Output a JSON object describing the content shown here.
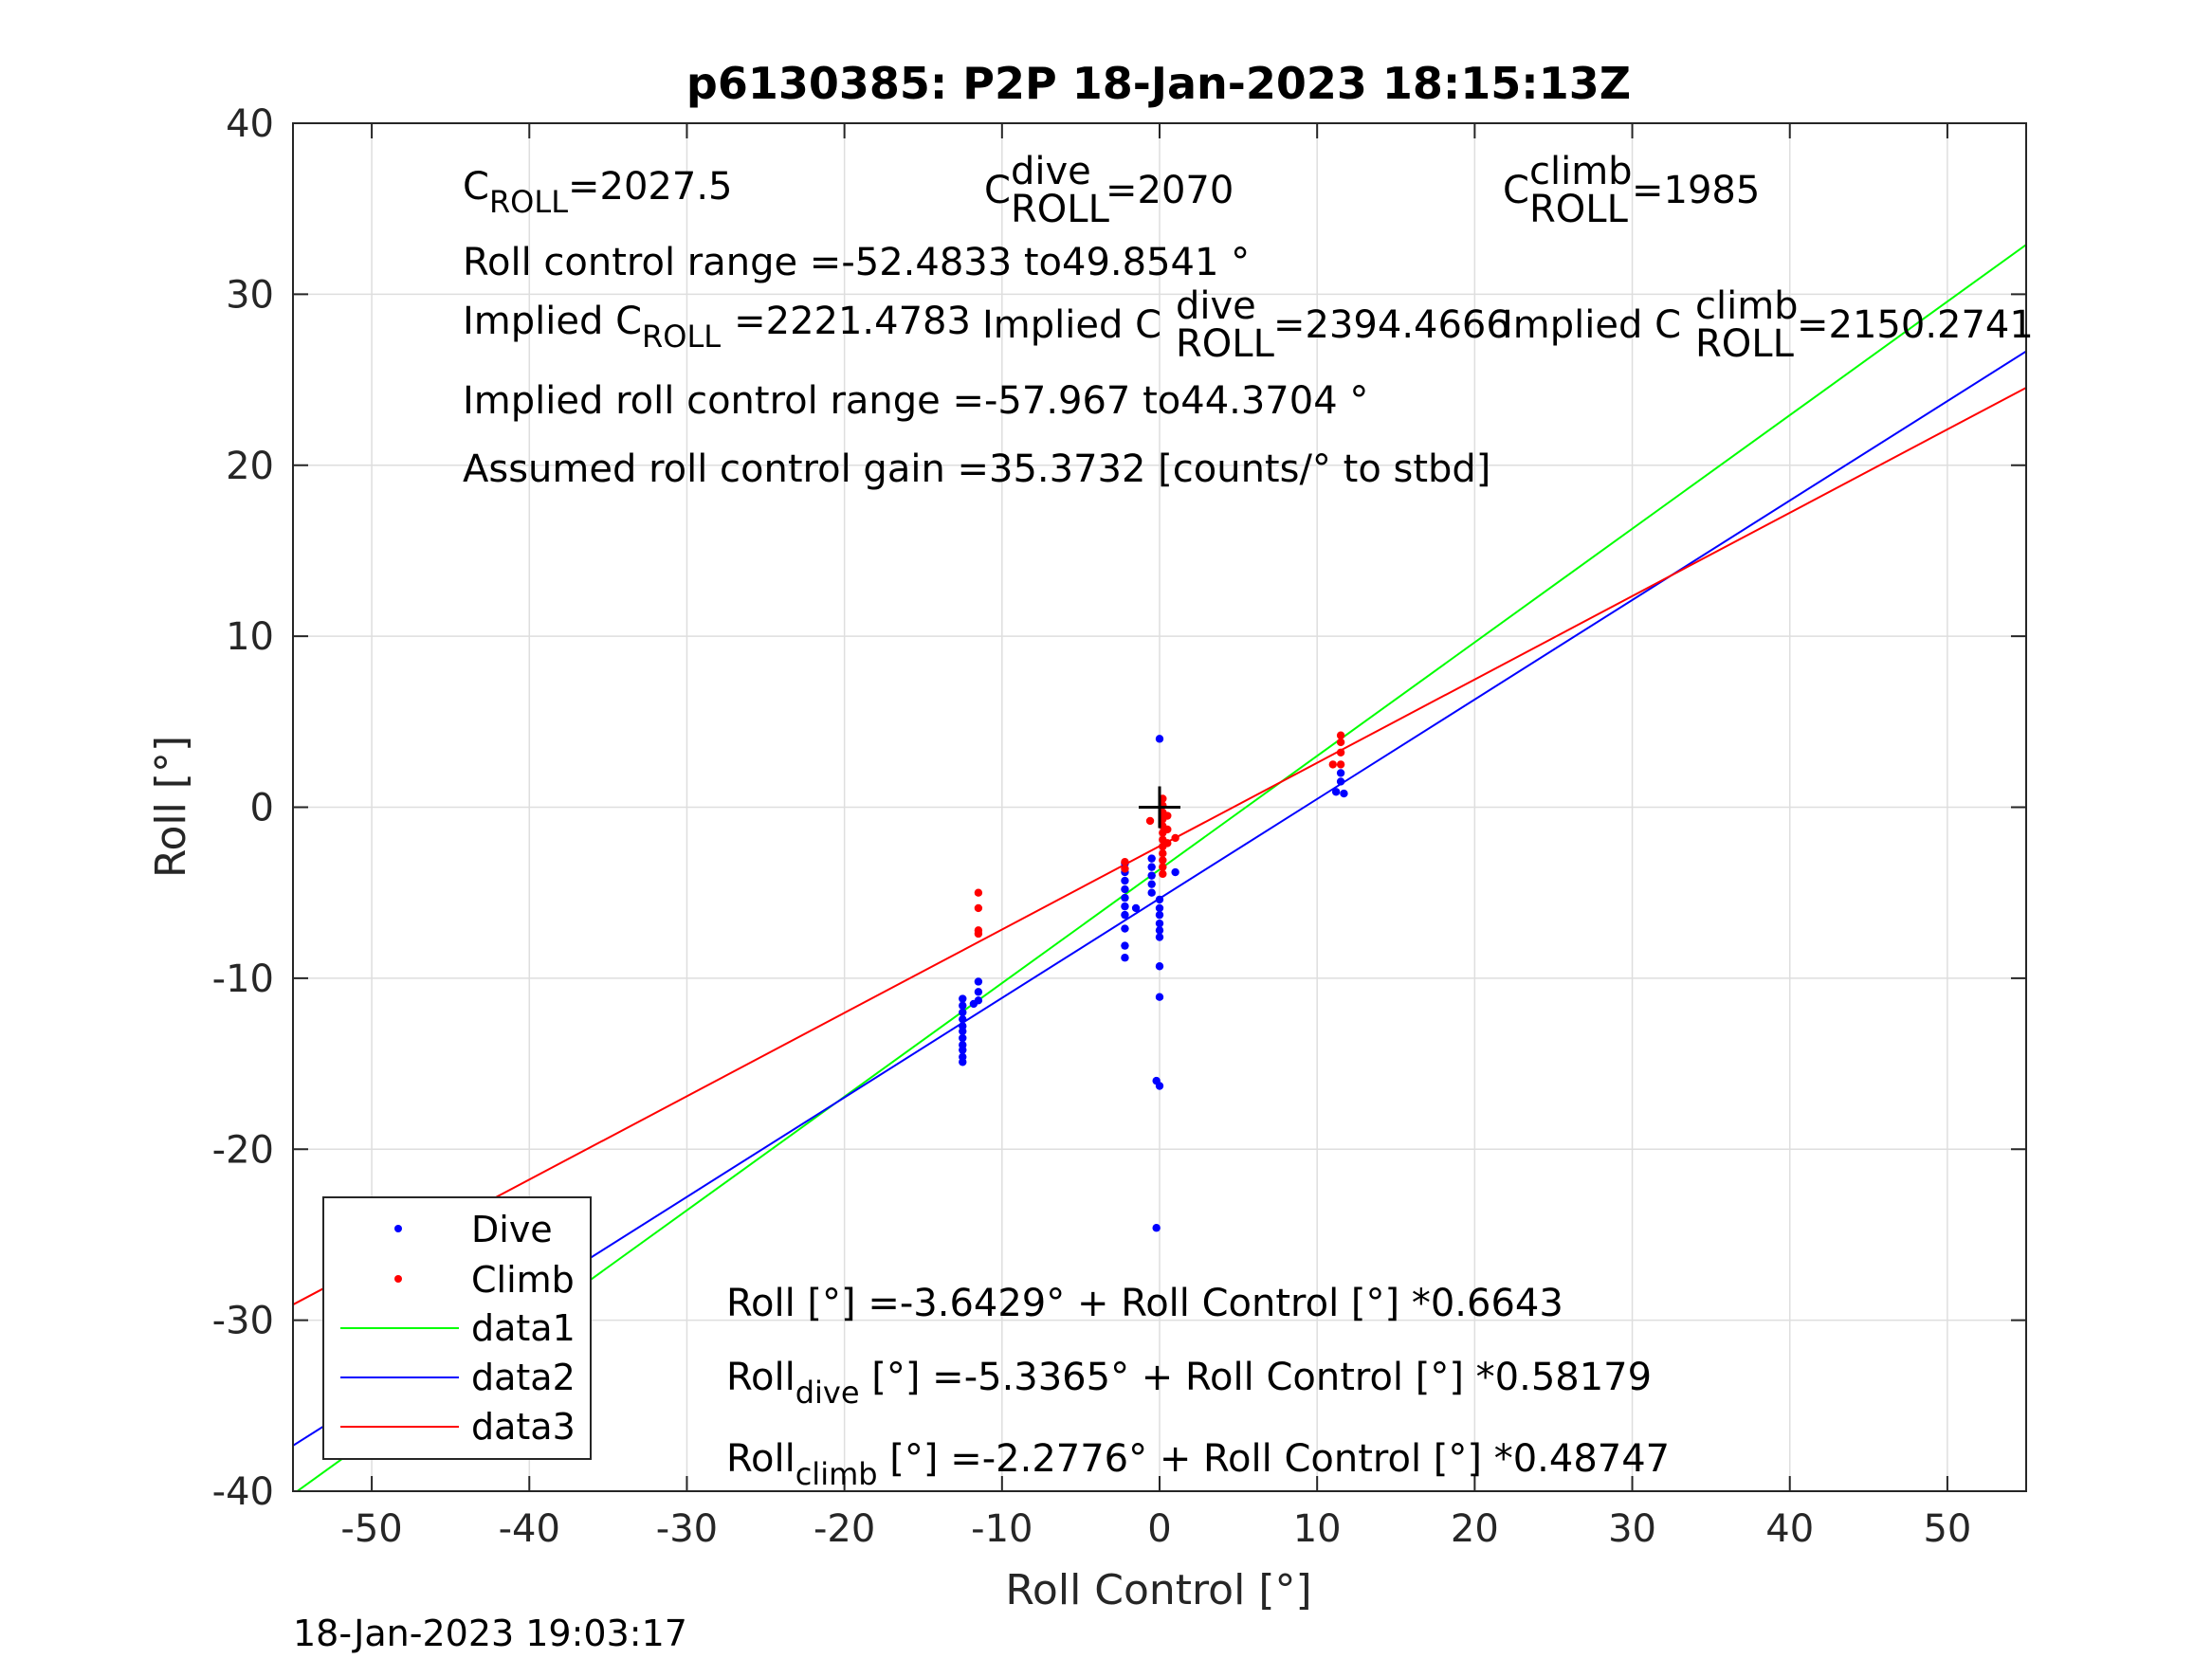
{
  "chart_data": {
    "type": "scatter",
    "title": "p6130385: P2P 18-Jan-2023 18:15:13Z",
    "xlabel": "Roll Control [°]",
    "ylabel": "Roll [°]",
    "xlim": [
      -55,
      55
    ],
    "ylim": [
      -40,
      40
    ],
    "xticks": [
      -50,
      -40,
      -30,
      -20,
      -10,
      0,
      10,
      20,
      30,
      40,
      50
    ],
    "yticks": [
      -40,
      -30,
      -20,
      -10,
      0,
      10,
      20,
      30,
      40
    ],
    "grid": true,
    "legend_position": "bottom-left",
    "timestamp": "18-Jan-2023 19:03:17",
    "center_marker": [
      0,
      0
    ],
    "series": [
      {
        "name": "Dive",
        "kind": "points",
        "color": "#0000ff",
        "points": [
          [
            -12.5,
            -11.2
          ],
          [
            -12.5,
            -11.6
          ],
          [
            -12.5,
            -12.0
          ],
          [
            -12.5,
            -12.4
          ],
          [
            -12.5,
            -12.8
          ],
          [
            -12.5,
            -13.1
          ],
          [
            -12.5,
            -13.5
          ],
          [
            -12.5,
            -13.9
          ],
          [
            -12.5,
            -14.2
          ],
          [
            -12.5,
            -14.6
          ],
          [
            -12.5,
            -14.9
          ],
          [
            -11.5,
            -10.2
          ],
          [
            -11.5,
            -10.8
          ],
          [
            -11.5,
            -11.3
          ],
          [
            -11.8,
            -11.5
          ],
          [
            -2.2,
            -3.3
          ],
          [
            -2.2,
            -3.8
          ],
          [
            -2.2,
            -4.3
          ],
          [
            -2.2,
            -4.8
          ],
          [
            -2.2,
            -5.3
          ],
          [
            -2.2,
            -5.8
          ],
          [
            -2.2,
            -6.3
          ],
          [
            -2.2,
            -7.1
          ],
          [
            -2.2,
            -8.1
          ],
          [
            -2.2,
            -8.8
          ],
          [
            -1.5,
            -5.9
          ],
          [
            -0.5,
            -3.0
          ],
          [
            -0.5,
            -3.5
          ],
          [
            -0.5,
            -4.0
          ],
          [
            -0.5,
            -4.5
          ],
          [
            -0.5,
            -5.0
          ],
          [
            0.0,
            4.0
          ],
          [
            0.0,
            -5.4
          ],
          [
            0.0,
            -5.9
          ],
          [
            0.0,
            -6.3
          ],
          [
            0.0,
            -6.8
          ],
          [
            0.0,
            -7.2
          ],
          [
            0.0,
            -7.6
          ],
          [
            0.0,
            -9.3
          ],
          [
            0.0,
            -11.1
          ],
          [
            -0.2,
            -16.0
          ],
          [
            0.0,
            -16.3
          ],
          [
            -0.2,
            -24.6
          ],
          [
            1.0,
            -3.8
          ],
          [
            11.2,
            0.9
          ],
          [
            11.5,
            1.5
          ],
          [
            11.5,
            2.0
          ],
          [
            11.7,
            0.8
          ]
        ]
      },
      {
        "name": "Climb",
        "kind": "points",
        "color": "#ff0000",
        "points": [
          [
            -11.5,
            -5.0
          ],
          [
            -11.5,
            -5.9
          ],
          [
            -11.5,
            -7.2
          ],
          [
            -11.5,
            -7.4
          ],
          [
            -2.2,
            -3.2
          ],
          [
            -2.2,
            -3.6
          ],
          [
            -0.6,
            -0.8
          ],
          [
            0.2,
            0.5
          ],
          [
            0.2,
            0.1
          ],
          [
            0.2,
            -0.3
          ],
          [
            0.2,
            -0.7
          ],
          [
            0.2,
            -1.1
          ],
          [
            0.2,
            -1.5
          ],
          [
            0.2,
            -1.9
          ],
          [
            0.2,
            -2.3
          ],
          [
            0.2,
            -2.7
          ],
          [
            0.2,
            -3.1
          ],
          [
            0.2,
            -3.5
          ],
          [
            0.2,
            -3.9
          ],
          [
            0.5,
            -0.5
          ],
          [
            0.5,
            -1.3
          ],
          [
            0.5,
            -2.1
          ],
          [
            1.0,
            -1.8
          ],
          [
            11.5,
            4.2
          ],
          [
            11.5,
            3.8
          ],
          [
            11.5,
            3.2
          ],
          [
            11.5,
            2.5
          ],
          [
            11.0,
            2.5
          ]
        ]
      },
      {
        "name": "data1",
        "kind": "line",
        "color": "#00ff00",
        "intercept": -3.6429,
        "slope": 0.6643
      },
      {
        "name": "data2",
        "kind": "line",
        "color": "#0000ff",
        "intercept": -5.3365,
        "slope": 0.58179
      },
      {
        "name": "data3",
        "kind": "line",
        "color": "#ff0000",
        "intercept": -2.2776,
        "slope": 0.48747
      }
    ],
    "annotations": {
      "croll_label": "C",
      "croll_sub": "ROLL",
      "croll_val": "=2027.5",
      "cdive_label": "C",
      "cdive_sup": "dive",
      "cdive_sub": "ROLL",
      "cdive_val": "=2070",
      "cclimb_label": "C",
      "cclimb_sup": "climb",
      "cclimb_sub": "ROLL",
      "cclimb_val": "=1985",
      "range_text": "Roll control range =-52.4833 to49.8541 °",
      "impl_label": "Implied C",
      "impl_sub": "ROLL",
      "impl_val": "=2221.4783",
      "impl_dive_label": "Implied C",
      "impl_dive_sup": "dive",
      "impl_dive_sub": "ROLL",
      "impl_dive_val": "=2394.4666",
      "impl_climb_label": "Implied C",
      "impl_climb_sup": "climb",
      "impl_climb_sub": "ROLL",
      "impl_climb_val": "=2150.2741",
      "impl_range_text": "Implied roll control range =-57.967 to44.3704 °",
      "gain_text": "Assumed roll control gain =35.3732 [counts/° to stbd]",
      "fit_all_text": "Roll [°] =-3.6429° + Roll Control [°] *0.6643",
      "fit_dive_label": "Roll",
      "fit_dive_sub": "dive",
      "fit_dive_rest": " [°] =-5.3365° + Roll Control [°] *0.58179",
      "fit_climb_label": "Roll",
      "fit_climb_sub": "climb",
      "fit_climb_rest": " [°] =-2.2776° + Roll Control [°] *0.48747"
    }
  }
}
